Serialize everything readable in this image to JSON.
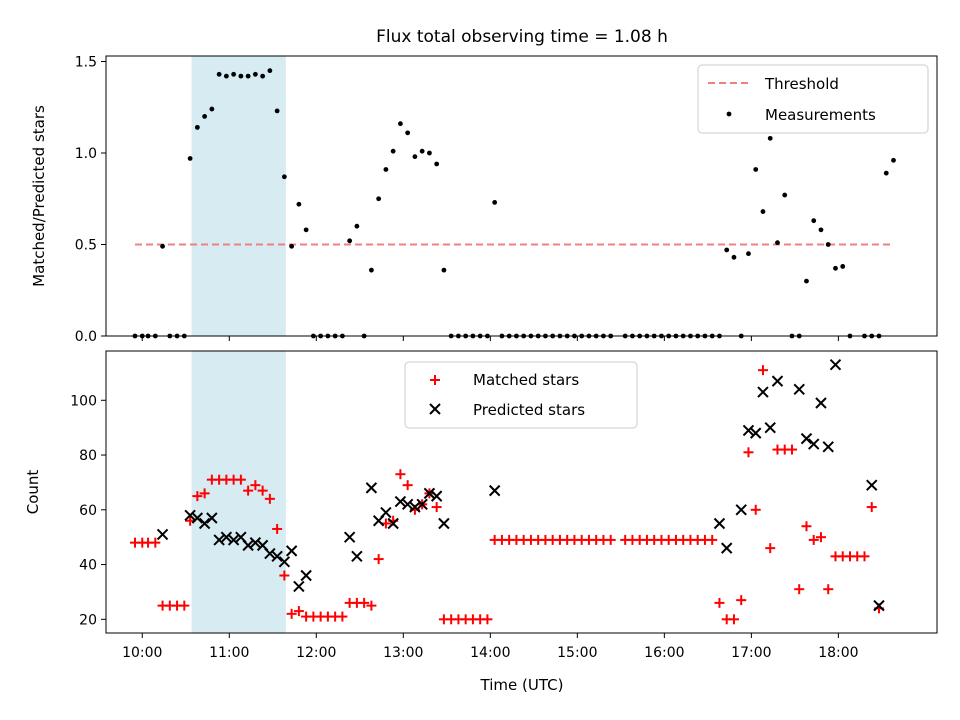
{
  "figure": {
    "title": "Flux total observing time = 1.08 h"
  },
  "chart_data": [
    {
      "type": "scatter",
      "ylabel": "Matched/Predicted stars",
      "xlim": [
        "09:35",
        "19:08"
      ],
      "ylim": [
        0,
        1.53
      ],
      "yticks": [
        0,
        0.5,
        1.0,
        1.5
      ],
      "ytick_labels": [
        "0.0",
        "0.5",
        "1.0",
        "1.5"
      ],
      "shaded_span": [
        "10:34",
        "11:39"
      ],
      "legend": {
        "location": "upper right",
        "entries": [
          "Threshold",
          "Measurements"
        ]
      },
      "threshold": {
        "name": "Threshold",
        "y": 0.5,
        "x_range": [
          "9:55",
          "18:36"
        ],
        "color": "#f08080"
      },
      "series": [
        {
          "name": "Measurements",
          "color": "#000000",
          "points": [
            [
              "9:55",
              0
            ],
            [
              "10:00",
              0
            ],
            [
              "10:04",
              0
            ],
            [
              "10:09",
              0
            ],
            [
              "10:14",
              0.49
            ],
            [
              "10:19",
              0
            ],
            [
              "10:24",
              0
            ],
            [
              "10:29",
              0
            ],
            [
              "10:33",
              0.97
            ],
            [
              "10:38",
              1.14
            ],
            [
              "10:43",
              1.2
            ],
            [
              "10:48",
              1.24
            ],
            [
              "10:53",
              1.43
            ],
            [
              "10:58",
              1.42
            ],
            [
              "11:03",
              1.43
            ],
            [
              "11:08",
              1.42
            ],
            [
              "11:13",
              1.42
            ],
            [
              "11:18",
              1.43
            ],
            [
              "11:23",
              1.42
            ],
            [
              "11:28",
              1.45
            ],
            [
              "11:33",
              1.23
            ],
            [
              "11:38",
              0.87
            ],
            [
              "11:43",
              0.49
            ],
            [
              "11:48",
              0.72
            ],
            [
              "11:53",
              0.58
            ],
            [
              "11:58",
              0
            ],
            [
              "12:03",
              0
            ],
            [
              "12:08",
              0
            ],
            [
              "12:13",
              0
            ],
            [
              "12:18",
              0
            ],
            [
              "12:23",
              0.52
            ],
            [
              "12:28",
              0.6
            ],
            [
              "12:33",
              0
            ],
            [
              "12:38",
              0.36
            ],
            [
              "12:43",
              0.75
            ],
            [
              "12:48",
              0.91
            ],
            [
              "12:53",
              1.01
            ],
            [
              "12:58",
              1.16
            ],
            [
              "13:03",
              1.11
            ],
            [
              "13:08",
              0.98
            ],
            [
              "13:13",
              1.01
            ],
            [
              "13:18",
              1.0
            ],
            [
              "13:23",
              0.94
            ],
            [
              "13:28",
              0.36
            ],
            [
              "13:33",
              0
            ],
            [
              "13:38",
              0
            ],
            [
              "13:43",
              0
            ],
            [
              "13:48",
              0
            ],
            [
              "13:53",
              0
            ],
            [
              "13:58",
              0
            ],
            [
              "14:03",
              0.73
            ],
            [
              "14:08",
              0
            ],
            [
              "14:13",
              0
            ],
            [
              "14:18",
              0
            ],
            [
              "14:23",
              0
            ],
            [
              "14:28",
              0
            ],
            [
              "14:33",
              0
            ],
            [
              "14:38",
              0
            ],
            [
              "14:43",
              0
            ],
            [
              "14:48",
              0
            ],
            [
              "14:53",
              0
            ],
            [
              "14:58",
              0
            ],
            [
              "15:03",
              0
            ],
            [
              "15:08",
              0
            ],
            [
              "15:13",
              0
            ],
            [
              "15:18",
              0
            ],
            [
              "15:23",
              0
            ],
            [
              "15:33",
              0
            ],
            [
              "15:38",
              0
            ],
            [
              "15:43",
              0
            ],
            [
              "15:48",
              0
            ],
            [
              "15:53",
              0
            ],
            [
              "15:58",
              0
            ],
            [
              "16:03",
              0
            ],
            [
              "16:08",
              0
            ],
            [
              "16:13",
              0
            ],
            [
              "16:18",
              0
            ],
            [
              "16:23",
              0
            ],
            [
              "16:28",
              0
            ],
            [
              "16:33",
              0
            ],
            [
              "16:38",
              0
            ],
            [
              "16:43",
              0.47
            ],
            [
              "16:48",
              0.43
            ],
            [
              "16:53",
              0
            ],
            [
              "16:58",
              0.45
            ],
            [
              "17:03",
              0.91
            ],
            [
              "17:08",
              0.68
            ],
            [
              "17:13",
              1.08
            ],
            [
              "17:18",
              0.51
            ],
            [
              "17:23",
              0.77
            ],
            [
              "17:28",
              0
            ],
            [
              "17:33",
              0
            ],
            [
              "17:38",
              0.3
            ],
            [
              "17:43",
              0.63
            ],
            [
              "17:48",
              0.58
            ],
            [
              "17:53",
              0.5
            ],
            [
              "17:58",
              0.37
            ],
            [
              "18:03",
              0.38
            ],
            [
              "18:08",
              0
            ],
            [
              "18:18",
              0
            ],
            [
              "18:23",
              0
            ],
            [
              "18:28",
              0
            ],
            [
              "18:33",
              0.89
            ],
            [
              "18:38",
              0.96
            ]
          ]
        }
      ]
    },
    {
      "type": "scatter",
      "ylabel": "Count",
      "xlabel": "Time (UTC)",
      "xlim": [
        "09:35",
        "19:08"
      ],
      "xticks": [
        "10:00",
        "11:00",
        "12:00",
        "13:00",
        "14:00",
        "15:00",
        "16:00",
        "17:00",
        "18:00"
      ],
      "ylim": [
        15,
        118
      ],
      "yticks": [
        20,
        40,
        60,
        80,
        100
      ],
      "shaded_span": [
        "10:34",
        "11:39"
      ],
      "legend": {
        "location": "upper center",
        "entries": [
          "Matched stars",
          "Predicted stars"
        ]
      },
      "series": [
        {
          "name": "Matched stars",
          "marker": "plus",
          "color": "#ff0000",
          "points": [
            [
              "9:55",
              48
            ],
            [
              "10:00",
              48
            ],
            [
              "10:04",
              48
            ],
            [
              "10:09",
              48
            ],
            [
              "10:14",
              25
            ],
            [
              "10:19",
              25
            ],
            [
              "10:24",
              25
            ],
            [
              "10:29",
              25
            ],
            [
              "10:33",
              56
            ],
            [
              "10:38",
              65
            ],
            [
              "10:43",
              66
            ],
            [
              "10:48",
              71
            ],
            [
              "10:53",
              71
            ],
            [
              "10:58",
              71
            ],
            [
              "11:03",
              71
            ],
            [
              "11:08",
              71
            ],
            [
              "11:13",
              67
            ],
            [
              "11:18",
              69
            ],
            [
              "11:23",
              67
            ],
            [
              "11:28",
              64
            ],
            [
              "11:33",
              53
            ],
            [
              "11:38",
              36
            ],
            [
              "11:43",
              22
            ],
            [
              "11:48",
              23
            ],
            [
              "11:53",
              21
            ],
            [
              "11:58",
              21
            ],
            [
              "12:03",
              21
            ],
            [
              "12:08",
              21
            ],
            [
              "12:13",
              21
            ],
            [
              "12:18",
              21
            ],
            [
              "12:23",
              26
            ],
            [
              "12:28",
              26
            ],
            [
              "12:33",
              26
            ],
            [
              "12:38",
              25
            ],
            [
              "12:43",
              42
            ],
            [
              "12:48",
              55
            ],
            [
              "12:53",
              56
            ],
            [
              "12:58",
              73
            ],
            [
              "13:03",
              69
            ],
            [
              "13:08",
              60
            ],
            [
              "13:13",
              62
            ],
            [
              "13:18",
              66
            ],
            [
              "13:23",
              61
            ],
            [
              "13:28",
              20
            ],
            [
              "13:33",
              20
            ],
            [
              "13:38",
              20
            ],
            [
              "13:43",
              20
            ],
            [
              "13:48",
              20
            ],
            [
              "13:53",
              20
            ],
            [
              "13:58",
              20
            ],
            [
              "14:03",
              49
            ],
            [
              "14:08",
              49
            ],
            [
              "14:13",
              49
            ],
            [
              "14:18",
              49
            ],
            [
              "14:23",
              49
            ],
            [
              "14:28",
              49
            ],
            [
              "14:33",
              49
            ],
            [
              "14:38",
              49
            ],
            [
              "14:43",
              49
            ],
            [
              "14:48",
              49
            ],
            [
              "14:53",
              49
            ],
            [
              "14:58",
              49
            ],
            [
              "15:03",
              49
            ],
            [
              "15:08",
              49
            ],
            [
              "15:13",
              49
            ],
            [
              "15:18",
              49
            ],
            [
              "15:23",
              49
            ],
            [
              "15:33",
              49
            ],
            [
              "15:38",
              49
            ],
            [
              "15:43",
              49
            ],
            [
              "15:48",
              49
            ],
            [
              "15:53",
              49
            ],
            [
              "15:58",
              49
            ],
            [
              "16:03",
              49
            ],
            [
              "16:08",
              49
            ],
            [
              "16:13",
              49
            ],
            [
              "16:18",
              49
            ],
            [
              "16:23",
              49
            ],
            [
              "16:28",
              49
            ],
            [
              "16:33",
              49
            ],
            [
              "16:38",
              26
            ],
            [
              "16:43",
              20
            ],
            [
              "16:48",
              20
            ],
            [
              "16:53",
              27
            ],
            [
              "16:58",
              81
            ],
            [
              "17:03",
              60
            ],
            [
              "17:08",
              111
            ],
            [
              "17:13",
              46
            ],
            [
              "17:18",
              82
            ],
            [
              "17:23",
              82
            ],
            [
              "17:28",
              82
            ],
            [
              "17:33",
              31
            ],
            [
              "17:38",
              54
            ],
            [
              "17:43",
              49
            ],
            [
              "17:48",
              50
            ],
            [
              "17:53",
              31
            ],
            [
              "17:58",
              43
            ],
            [
              "18:03",
              43
            ],
            [
              "18:08",
              43
            ],
            [
              "18:13",
              43
            ],
            [
              "18:18",
              43
            ],
            [
              "18:23",
              61
            ],
            [
              "18:28",
              24
            ]
          ]
        },
        {
          "name": "Predicted stars",
          "marker": "x",
          "color": "#000000",
          "points": [
            [
              "10:14",
              51
            ],
            [
              "10:33",
              58
            ],
            [
              "10:38",
              57
            ],
            [
              "10:43",
              55
            ],
            [
              "10:48",
              57
            ],
            [
              "10:53",
              49
            ],
            [
              "10:58",
              50
            ],
            [
              "11:03",
              49
            ],
            [
              "11:08",
              50
            ],
            [
              "11:13",
              47
            ],
            [
              "11:18",
              48
            ],
            [
              "11:23",
              47
            ],
            [
              "11:28",
              44
            ],
            [
              "11:33",
              43
            ],
            [
              "11:38",
              41
            ],
            [
              "11:43",
              45
            ],
            [
              "11:48",
              32
            ],
            [
              "11:53",
              36
            ],
            [
              "12:23",
              50
            ],
            [
              "12:28",
              43
            ],
            [
              "12:38",
              68
            ],
            [
              "12:43",
              56
            ],
            [
              "12:48",
              59
            ],
            [
              "12:53",
              55
            ],
            [
              "12:58",
              63
            ],
            [
              "13:03",
              62
            ],
            [
              "13:08",
              61
            ],
            [
              "13:13",
              62
            ],
            [
              "13:18",
              66
            ],
            [
              "13:23",
              65
            ],
            [
              "13:28",
              55
            ],
            [
              "14:03",
              67
            ],
            [
              "16:38",
              55
            ],
            [
              "16:43",
              46
            ],
            [
              "16:53",
              60
            ],
            [
              "16:58",
              89
            ],
            [
              "17:03",
              88
            ],
            [
              "17:08",
              103
            ],
            [
              "17:13",
              90
            ],
            [
              "17:18",
              107
            ],
            [
              "17:33",
              104
            ],
            [
              "17:38",
              86
            ],
            [
              "17:43",
              84
            ],
            [
              "17:48",
              99
            ],
            [
              "17:53",
              83
            ],
            [
              "17:58",
              113
            ],
            [
              "18:23",
              69
            ],
            [
              "18:28",
              25
            ]
          ]
        }
      ]
    }
  ]
}
